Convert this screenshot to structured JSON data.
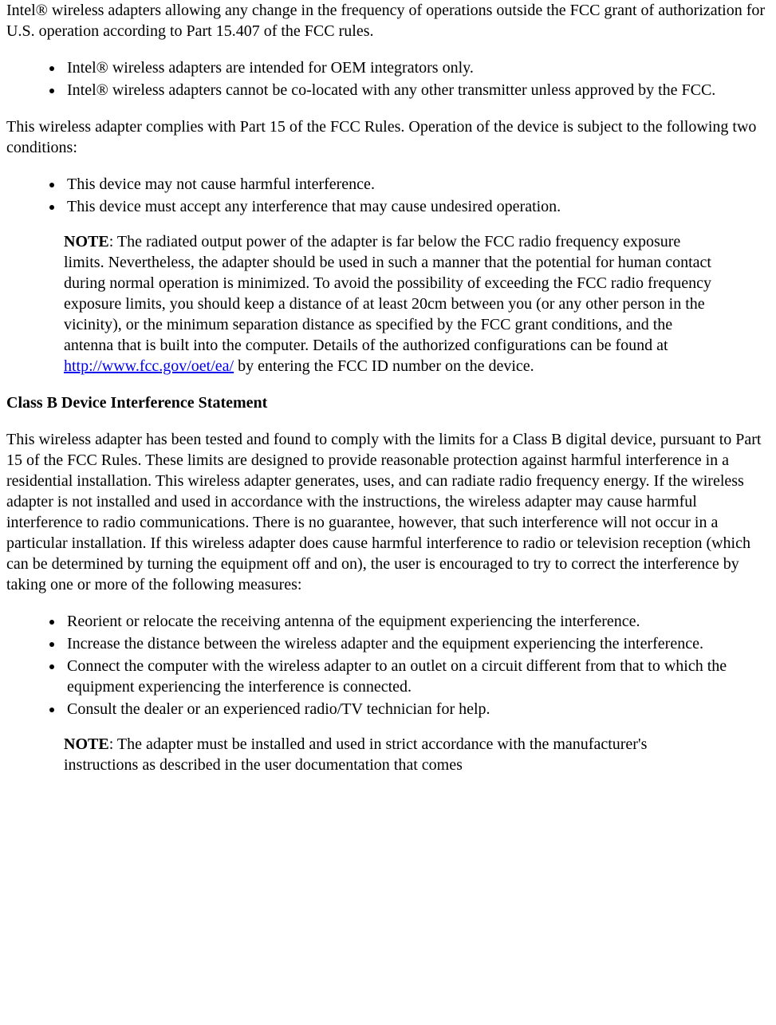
{
  "intro_paragraph": "Intel® wireless adapters allowing any change in the frequency of operations outside the FCC grant of authorization for U.S. operation according to Part 15.407 of the FCC rules.",
  "list1": {
    "item1": "Intel® wireless adapters are intended for OEM integrators only.",
    "item2": "Intel® wireless adapters cannot be co-located with any other transmitter unless approved by the FCC."
  },
  "compliance_paragraph": "This wireless adapter complies with Part 15 of the FCC Rules. Operation of the device is subject to the following two conditions:",
  "list2": {
    "item1": "This device may not cause harmful interference.",
    "item2": "This device must accept any interference that may cause undesired operation."
  },
  "note1": {
    "label": "NOTE",
    "text_before_link": ": The radiated output power of the adapter is far below the FCC radio frequency exposure limits. Nevertheless, the adapter should be used in such a manner that the potential for human contact during normal operation is minimized. To avoid the possibility of exceeding the FCC radio frequency exposure limits, you should keep a distance of at least 20cm between you (or any other person in the vicinity), or the minimum separation distance as specified by the FCC grant conditions, and the antenna that is built into the computer. Details of the authorized configurations can be found at ",
    "link_text": "http://www.fcc.gov/oet/ea/",
    "link_href": "http://www.fcc.gov/oet/ea/",
    "text_after_link": " by entering the FCC ID number on the device."
  },
  "heading_classb": "Class B Device Interference Statement",
  "classb_paragraph": "This wireless adapter has been tested and found to comply with the limits for a Class B digital device, pursuant to Part 15 of the FCC Rules. These limits are designed to provide reasonable protection against harmful interference in a residential installation. This wireless adapter generates, uses, and can radiate radio frequency energy. If the wireless adapter is not installed and used in accordance with the instructions, the wireless adapter may cause harmful interference to radio communications. There is no guarantee, however, that such interference will not occur in a particular installation. If this wireless adapter does cause harmful interference to radio or television reception (which can be determined by turning the equipment off and on), the user is encouraged to try to correct the interference by taking one or more of the following measures:",
  "list3": {
    "item1": "Reorient or relocate the receiving antenna of the equipment experiencing the interference.",
    "item2": "Increase the distance between the wireless adapter and the equipment experiencing the interference.",
    "item3": "Connect the computer with the wireless adapter to an outlet on a circuit different from that to which the equipment experiencing the interference is connected.",
    "item4": "Consult the dealer or an experienced radio/TV technician for help."
  },
  "note2": {
    "label": "NOTE",
    "text": ": The adapter must be installed and used in strict accordance with the manufacturer's instructions as described in the user documentation that comes"
  }
}
